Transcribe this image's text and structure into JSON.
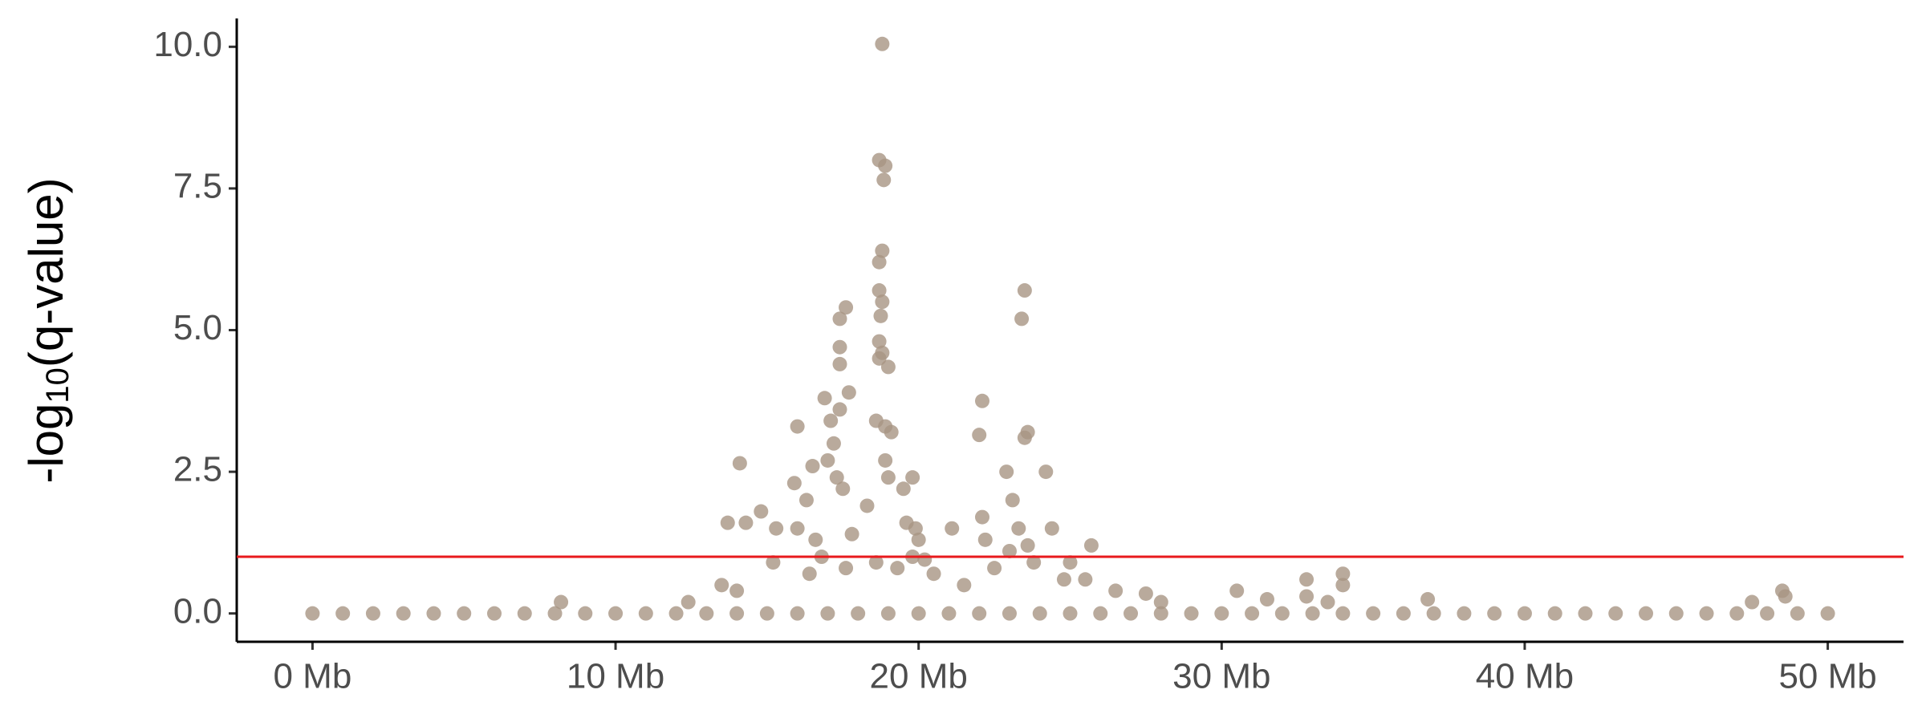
{
  "chart_data": {
    "type": "scatter",
    "y_label": {
      "prefix": "-log",
      "subscript": "10",
      "suffix": "(q-value)"
    },
    "color": "#a89583",
    "threshold": 1,
    "threshold_color": "#e8191c",
    "xlim": [
      -2.5,
      52.5
    ],
    "xticks": [
      {
        "value": 0,
        "label": "0 Mb"
      },
      {
        "value": 10,
        "label": "10 Mb"
      },
      {
        "value": 20,
        "label": "20 Mb"
      },
      {
        "value": 30,
        "label": "30 Mb"
      },
      {
        "value": 40,
        "label": "40 Mb"
      },
      {
        "value": 50,
        "label": "50 Mb"
      }
    ],
    "ylim": [
      -0.5,
      10.5
    ],
    "yticks": [
      {
        "value": 0,
        "label": "0.0"
      },
      2.5,
      {
        "value": 5,
        "label": "5.0"
      },
      7.5,
      {
        "value": 10,
        "label": "10.0"
      }
    ],
    "x": [
      0,
      1,
      2,
      3,
      4,
      5,
      6,
      7,
      8,
      9,
      10,
      11,
      12,
      13,
      14,
      15,
      16,
      17,
      18,
      19,
      20,
      21,
      22,
      23,
      24,
      25,
      26,
      27,
      28,
      29,
      30,
      31,
      32,
      33,
      34,
      35,
      36,
      37,
      38,
      39,
      40,
      41,
      42,
      43,
      44,
      45,
      46,
      47,
      48,
      49,
      50,
      18.8,
      18.7,
      18.9,
      18.85,
      18.8,
      18.7,
      18.7,
      18.8,
      18.75,
      18.7,
      18.8,
      19.0,
      18.7,
      17.6,
      17.4,
      17.4,
      17.4,
      17.7,
      16.9,
      17.1,
      17.4,
      18.9,
      19.1,
      16.0,
      18.6,
      17.2,
      17.0,
      16.5,
      14.1,
      17.3,
      18.9,
      19.0,
      19.8,
      19.5,
      17.5,
      16.3,
      18.3,
      15.9,
      14.8,
      13.7,
      14.3,
      15.3,
      16.0,
      16.6,
      17.8,
      19.6,
      19.9,
      20.0,
      21.1,
      22.1,
      22.0,
      22.9,
      24.2,
      23.6,
      23.5,
      23.5,
      23.4,
      22.1,
      22.2,
      23.1,
      23.3,
      23.6,
      24.4,
      25.0,
      25.7,
      22.5,
      23.8,
      15.2,
      16.4,
      17.6,
      18.6,
      19.3,
      20.5,
      21.5,
      14.0,
      13.5,
      12.4,
      24.8,
      25.5,
      26.5,
      27.5,
      28.0,
      30.5,
      31.5,
      32.8,
      34.0,
      34.0,
      32.8,
      33.5,
      36.8,
      47.5,
      48.5,
      48.6,
      8.2,
      16.8,
      19.8,
      20.2,
      23.0
    ],
    "values": [
      0,
      0,
      0,
      0,
      0,
      0,
      0,
      0,
      0,
      0,
      0,
      0,
      0,
      0,
      0,
      0,
      0,
      0,
      0,
      0,
      0,
      0,
      0,
      0,
      0,
      0,
      0,
      0,
      0,
      0,
      0,
      0,
      0,
      0,
      0,
      0,
      0,
      0,
      0,
      0,
      0,
      0,
      0,
      0,
      0,
      0,
      0,
      0,
      0,
      0,
      0,
      10.05,
      8.0,
      7.9,
      7.65,
      6.4,
      6.2,
      5.7,
      5.5,
      5.25,
      4.8,
      4.6,
      4.35,
      4.5,
      5.4,
      5.2,
      4.7,
      4.4,
      3.9,
      3.8,
      3.4,
      3.6,
      3.3,
      3.2,
      3.3,
      3.4,
      3.0,
      2.7,
      2.6,
      2.65,
      2.4,
      2.7,
      2.4,
      2.4,
      2.2,
      2.2,
      2.0,
      1.9,
      2.3,
      1.8,
      1.6,
      1.6,
      1.5,
      1.5,
      1.3,
      1.4,
      1.6,
      1.5,
      1.3,
      1.5,
      3.75,
      3.15,
      2.5,
      2.5,
      3.2,
      3.1,
      5.7,
      5.2,
      1.7,
      1.3,
      2.0,
      1.5,
      1.2,
      1.5,
      0.9,
      1.2,
      0.8,
      0.9,
      0.9,
      0.7,
      0.8,
      0.9,
      0.8,
      0.7,
      0.5,
      0.4,
      0.5,
      0.2,
      0.6,
      0.6,
      0.4,
      0.35,
      0.2,
      0.4,
      0.25,
      0.6,
      0.7,
      0.5,
      0.3,
      0.2,
      0.25,
      0.2,
      0.4,
      0.3,
      0.2,
      1.0,
      1.0,
      0.95,
      1.1
    ]
  }
}
